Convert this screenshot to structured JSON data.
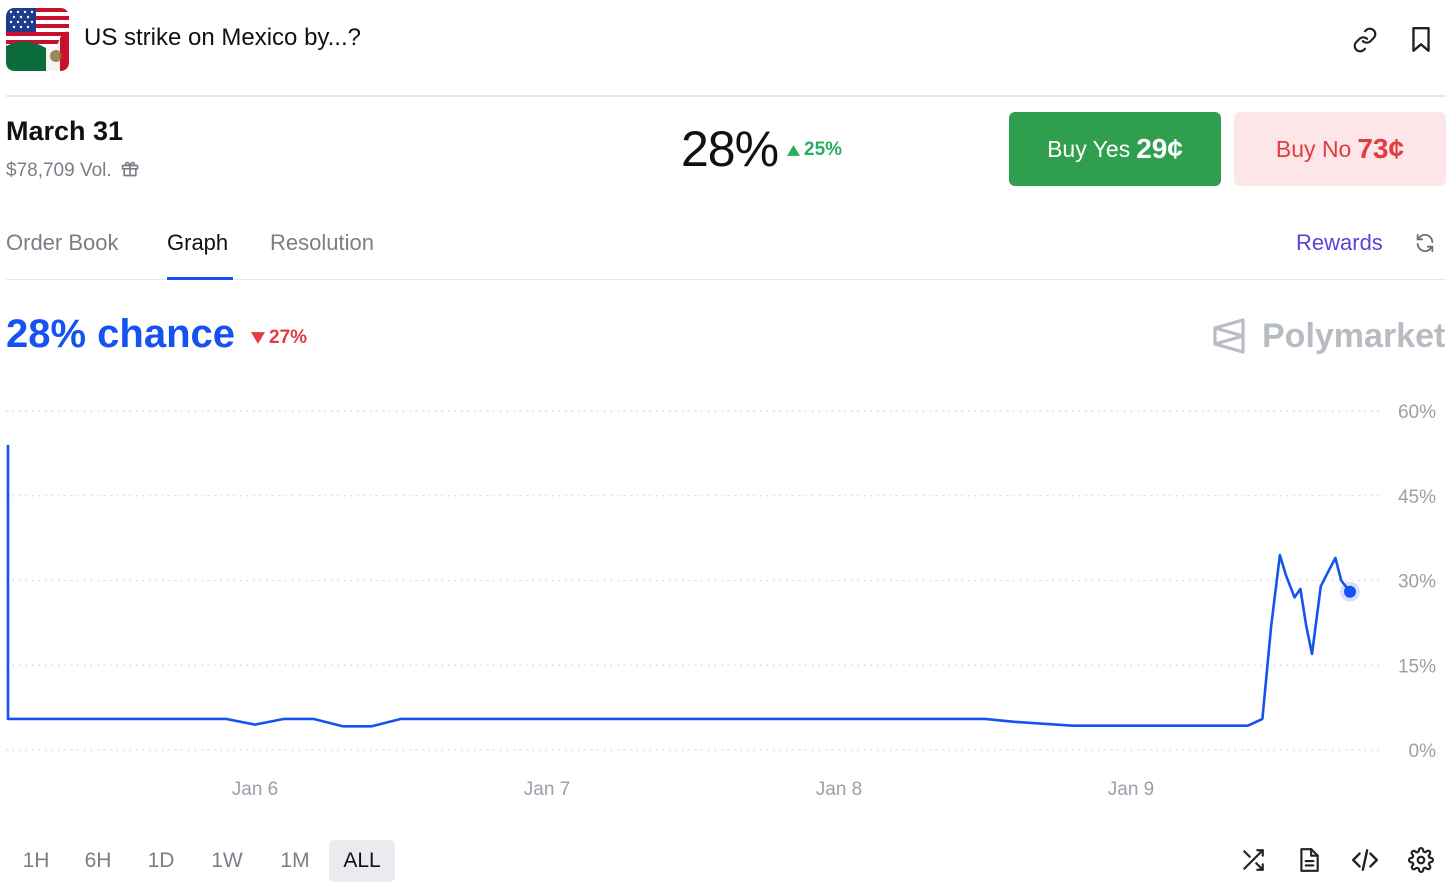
{
  "header": {
    "title": "US strike on Mexico by...?",
    "flag_icon": "us-mexico-flag",
    "link_icon": "link-icon",
    "bookmark_icon": "bookmark-icon"
  },
  "outcome": {
    "name": "March 31",
    "volume": "$78,709 Vol.",
    "gift_icon": "gift-icon",
    "percent": "28%",
    "change": "25%",
    "change_direction": "up",
    "buy_yes_label": "Buy Yes",
    "buy_yes_price": "29¢",
    "buy_no_label": "Buy No",
    "buy_no_price": "73¢"
  },
  "tabs": [
    {
      "label": "Order Book",
      "active": false
    },
    {
      "label": "Graph",
      "active": true
    },
    {
      "label": "Resolution",
      "active": false
    }
  ],
  "rewards_label": "Rewards",
  "chance": {
    "label": "28% chance",
    "change": "27%",
    "change_direction": "down"
  },
  "brand": "Polymarket",
  "colors": {
    "accent": "#1652f0",
    "yes": "#2f9e4f",
    "no_bg": "#fde6e8",
    "no_text": "#e03c42",
    "up": "#27ae60",
    "down": "#e03c42"
  },
  "chart_data": {
    "type": "line",
    "x_ticks": [
      "Jan 6",
      "Jan 7",
      "Jan 8",
      "Jan 9"
    ],
    "y_ticks": [
      "60%",
      "45%",
      "30%",
      "15%",
      "0%"
    ],
    "ylim": [
      0,
      60
    ],
    "grid": true,
    "series": [
      {
        "x": [
          5.0,
          5.01,
          5.02,
          5.03,
          5.05,
          5.08,
          5.1,
          5.15,
          5.2,
          5.3,
          5.5,
          5.7,
          5.9,
          6.0,
          6.1,
          6.2,
          6.3,
          6.4,
          6.5,
          6.6,
          6.8,
          7.0,
          7.2,
          7.4,
          7.6,
          7.8,
          8.0,
          8.2,
          8.4,
          8.5,
          8.6,
          8.8,
          9.0,
          9.2,
          9.35,
          9.4,
          9.45,
          9.48,
          9.51,
          9.53,
          9.56,
          9.58,
          9.6,
          9.62,
          9.65,
          9.67,
          9.7,
          9.72,
          9.75
        ],
        "values": [
          54,
          8,
          7,
          9,
          7,
          6.5,
          5.5,
          5.5,
          5.5,
          5.5,
          5.5,
          5.5,
          5.5,
          4.5,
          5.5,
          5.5,
          4.2,
          4.2,
          5.5,
          5.5,
          5.5,
          5.5,
          5.5,
          5.5,
          5.5,
          5.5,
          5.5,
          5.5,
          5.5,
          5.5,
          5.0,
          4.3,
          4.3,
          4.3,
          4.3,
          4.3,
          5.5,
          22,
          34.5,
          31,
          27,
          28.5,
          22,
          17,
          29,
          31,
          34,
          30,
          28
        ]
      }
    ]
  },
  "time_ranges": [
    {
      "label": "1H",
      "active": false
    },
    {
      "label": "6H",
      "active": false
    },
    {
      "label": "1D",
      "active": false
    },
    {
      "label": "1W",
      "active": false
    },
    {
      "label": "1M",
      "active": false
    },
    {
      "label": "ALL",
      "active": true
    }
  ],
  "tools": [
    "shuffle-icon",
    "document-icon",
    "code-icon",
    "settings-icon"
  ]
}
